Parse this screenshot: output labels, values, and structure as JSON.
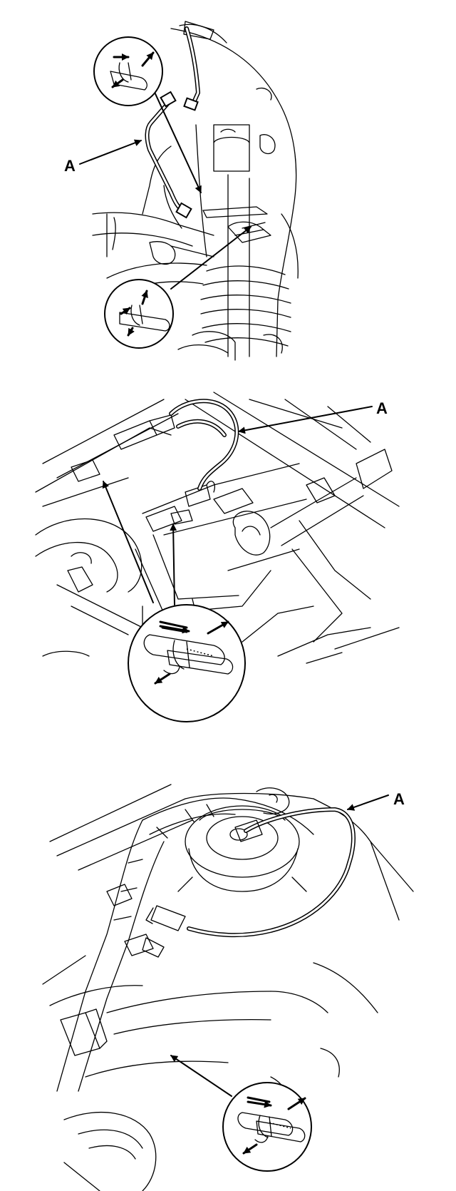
{
  "figures": [
    {
      "callout": "A"
    },
    {
      "callout": "A"
    },
    {
      "callout": "A"
    }
  ]
}
